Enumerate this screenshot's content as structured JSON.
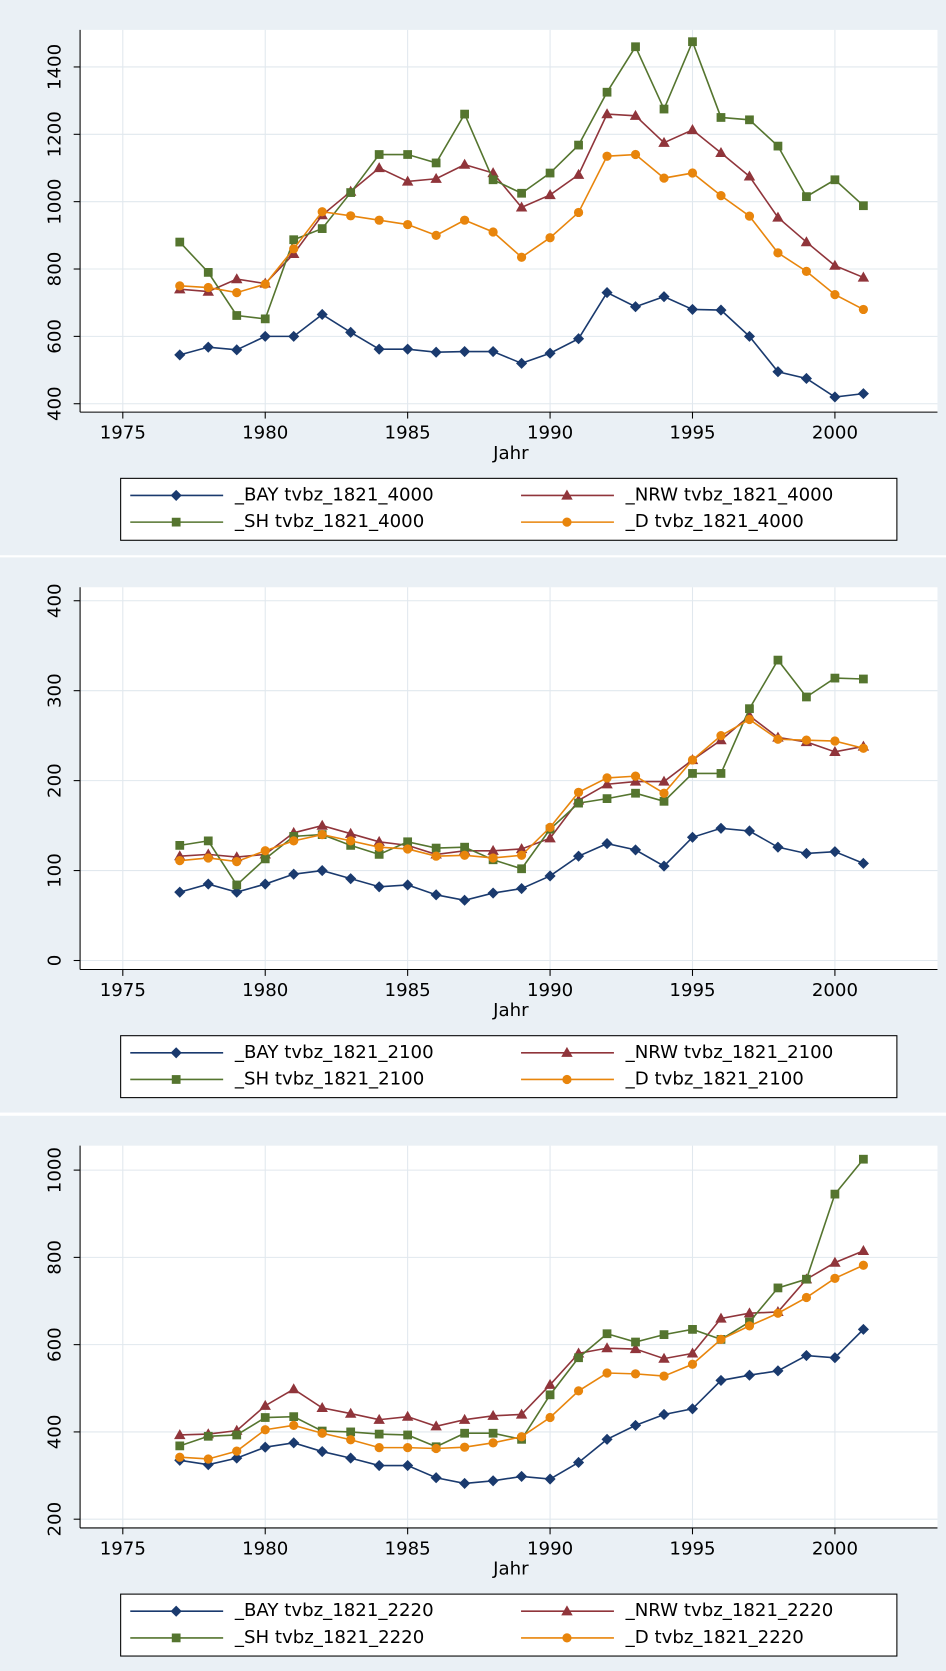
{
  "chart_data": [
    {
      "type": "line",
      "x_label": "Jahr",
      "x": [
        1977,
        1978,
        1979,
        1980,
        1981,
        1982,
        1983,
        1984,
        1985,
        1986,
        1987,
        1988,
        1989,
        1990,
        1991,
        1992,
        1993,
        1994,
        1995,
        1996,
        1997,
        1998,
        1999,
        2000,
        2001
      ],
      "xlim": [
        1973.5,
        2003.6
      ],
      "xticks": [
        1975,
        1980,
        1985,
        1990,
        1995,
        2000
      ],
      "ylim": [
        375,
        1510
      ],
      "yticks": [
        400,
        600,
        800,
        1000,
        1200,
        1400
      ],
      "grid": true,
      "series": [
        {
          "name": "_BAY tvbz_1821_4000",
          "color": "#1a3a6e",
          "marker": "diamond",
          "values": [
            545,
            568,
            560,
            600,
            600,
            665,
            612,
            562,
            562,
            553,
            555,
            555,
            520,
            550,
            593,
            730,
            688,
            718,
            680,
            678,
            600,
            495,
            475,
            420,
            430
          ]
        },
        {
          "name": "_NRW tvbz_1821_4000",
          "color": "#90353b",
          "marker": "triangle",
          "values": [
            740,
            733,
            770,
            757,
            845,
            960,
            1030,
            1100,
            1060,
            1068,
            1110,
            1085,
            983,
            1020,
            1080,
            1260,
            1255,
            1175,
            1213,
            1145,
            1075,
            953,
            880,
            810,
            775
          ]
        },
        {
          "name": "_SH tvbz_1821_4000",
          "color": "#55752f",
          "marker": "square",
          "values": [
            880,
            790,
            662,
            652,
            887,
            920,
            1027,
            1140,
            1140,
            1115,
            1260,
            1065,
            1025,
            1085,
            1168,
            1325,
            1460,
            1275,
            1475,
            1250,
            1243,
            1165,
            1015,
            1065,
            988
          ]
        },
        {
          "name": "_D tvbz_1821_4000",
          "color": "#e8850c",
          "marker": "circle",
          "values": [
            750,
            745,
            730,
            755,
            860,
            970,
            958,
            945,
            932,
            900,
            945,
            910,
            835,
            893,
            968,
            1135,
            1140,
            1070,
            1085,
            1018,
            957,
            848,
            793,
            724,
            680
          ]
        }
      ]
    },
    {
      "type": "line",
      "x_label": "Jahr",
      "x": [
        1977,
        1978,
        1979,
        1980,
        1981,
        1982,
        1983,
        1984,
        1985,
        1986,
        1987,
        1988,
        1989,
        1990,
        1991,
        1992,
        1993,
        1994,
        1995,
        1996,
        1997,
        1998,
        1999,
        2000,
        2001
      ],
      "xlim": [
        1973.5,
        2003.6
      ],
      "xticks": [
        1975,
        1980,
        1985,
        1990,
        1995,
        2000
      ],
      "ylim": [
        -10,
        415
      ],
      "yticks": [
        0,
        100,
        200,
        300,
        400
      ],
      "grid": true,
      "series": [
        {
          "name": "_BAY tvbz_1821_2100",
          "color": "#1a3a6e",
          "marker": "diamond",
          "values": [
            76,
            85,
            76,
            85,
            96,
            100,
            91,
            82,
            84,
            73,
            67,
            75,
            80,
            94,
            116,
            130,
            123,
            105,
            137,
            147,
            144,
            126,
            119,
            121,
            108
          ]
        },
        {
          "name": "_NRW tvbz_1821_2100",
          "color": "#90353b",
          "marker": "triangle",
          "values": [
            116,
            118,
            115,
            118,
            142,
            150,
            141,
            132,
            128,
            118,
            122,
            122,
            124,
            136,
            178,
            196,
            199,
            199,
            223,
            245,
            272,
            248,
            243,
            232,
            238
          ]
        },
        {
          "name": "_SH tvbz_1821_2100",
          "color": "#55752f",
          "marker": "square",
          "values": [
            128,
            133,
            84,
            113,
            138,
            140,
            128,
            118,
            132,
            125,
            126,
            112,
            102,
            146,
            175,
            180,
            186,
            177,
            208,
            208,
            280,
            334,
            293,
            314,
            313
          ]
        },
        {
          "name": "_D tvbz_1821_2100",
          "color": "#e8850c",
          "marker": "circle",
          "values": [
            111,
            114,
            110,
            122,
            133,
            140,
            133,
            126,
            124,
            116,
            117,
            114,
            117,
            148,
            187,
            203,
            205,
            186,
            223,
            250,
            268,
            246,
            245,
            244,
            236
          ]
        }
      ]
    },
    {
      "type": "line",
      "x_label": "Jahr",
      "x": [
        1977,
        1978,
        1979,
        1980,
        1981,
        1982,
        1983,
        1984,
        1985,
        1986,
        1987,
        1988,
        1989,
        1990,
        1991,
        1992,
        1993,
        1994,
        1995,
        1996,
        1997,
        1998,
        1999,
        2000,
        2001
      ],
      "xlim": [
        1973.5,
        2003.6
      ],
      "xticks": [
        1975,
        1980,
        1985,
        1990,
        1995,
        2000
      ],
      "ylim": [
        180,
        1056
      ],
      "yticks": [
        200,
        400,
        600,
        800,
        1000
      ],
      "grid": true,
      "series": [
        {
          "name": "_BAY tvbz_1821_2220",
          "color": "#1a3a6e",
          "marker": "diamond",
          "values": [
            335,
            325,
            340,
            365,
            375,
            355,
            340,
            323,
            323,
            295,
            282,
            288,
            298,
            292,
            330,
            383,
            415,
            440,
            453,
            518,
            530,
            540,
            575,
            570,
            635
          ]
        },
        {
          "name": "_NRW tvbz_1821_2220",
          "color": "#90353b",
          "marker": "triangle",
          "values": [
            393,
            395,
            403,
            460,
            498,
            455,
            442,
            428,
            435,
            413,
            428,
            437,
            440,
            508,
            580,
            592,
            590,
            568,
            580,
            660,
            672,
            675,
            750,
            788,
            815
          ]
        },
        {
          "name": "_SH tvbz_1821_2220",
          "color": "#55752f",
          "marker": "square",
          "values": [
            368,
            390,
            393,
            433,
            435,
            402,
            400,
            395,
            393,
            366,
            397,
            397,
            383,
            485,
            570,
            625,
            606,
            623,
            635,
            612,
            652,
            730,
            750,
            945,
            1025
          ]
        },
        {
          "name": "_D tvbz_1821_2220",
          "color": "#e8850c",
          "marker": "circle",
          "values": [
            342,
            338,
            356,
            405,
            415,
            397,
            382,
            364,
            364,
            362,
            365,
            375,
            389,
            433,
            494,
            535,
            533,
            528,
            555,
            612,
            643,
            672,
            708,
            752,
            782
          ]
        }
      ]
    }
  ]
}
